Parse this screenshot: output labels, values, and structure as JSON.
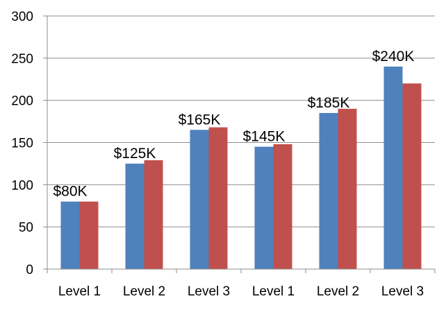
{
  "chart_data": {
    "type": "bar",
    "categories": [
      "Level 1",
      "Level 2",
      "Level 3",
      "Level 1",
      "Level 2",
      "Level 3"
    ],
    "series": [
      {
        "values": [
          80,
          125,
          165,
          145,
          185,
          240
        ],
        "color": "#4F81BD"
      },
      {
        "values": [
          80,
          129,
          168,
          148,
          190,
          220
        ],
        "color": "#C0504D"
      }
    ],
    "data_labels": [
      "$80K",
      "$125K",
      "$165K",
      "$145K",
      "$185K",
      "$240K"
    ],
    "ylim": [
      0,
      300
    ],
    "yticks": [
      0,
      50,
      100,
      150,
      200,
      250,
      300
    ],
    "grid": true,
    "legend": "none",
    "title": "",
    "xlabel": "",
    "ylabel": ""
  }
}
